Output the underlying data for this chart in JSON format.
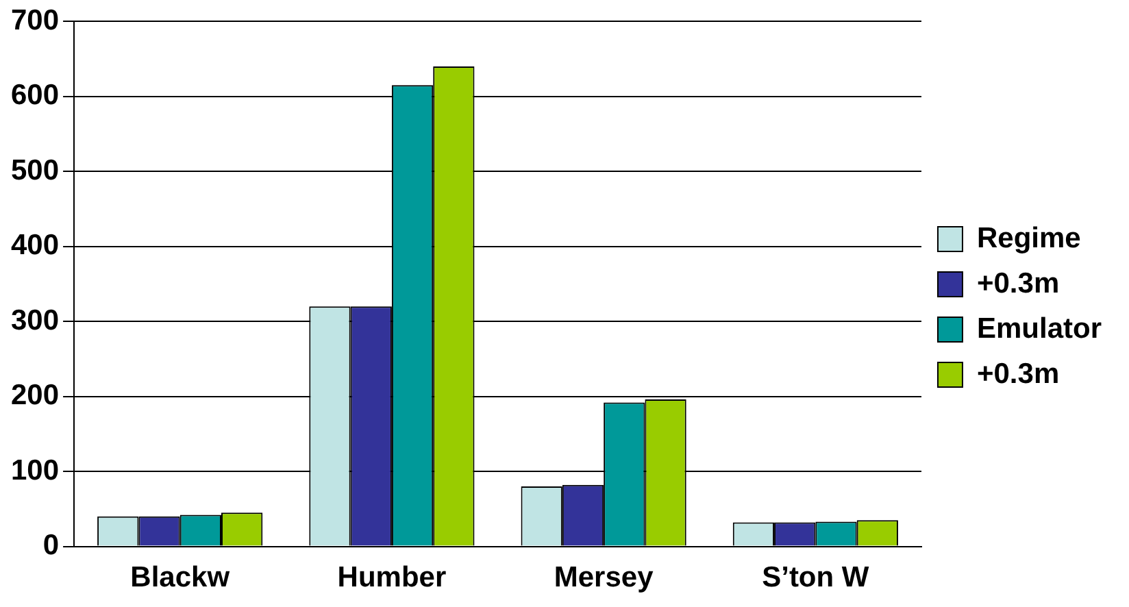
{
  "chart_data": {
    "type": "bar",
    "categories": [
      "Blackw",
      "Humber",
      "Mersey",
      "S’ton W"
    ],
    "series": [
      {
        "name": "Regime",
        "color": "#c0e4e4",
        "values": [
          40,
          320,
          80,
          32
        ]
      },
      {
        "name": "+0.3m",
        "color": "#333399",
        "values": [
          40,
          320,
          82,
          32
        ]
      },
      {
        "name": "Emulator",
        "color": "#009999",
        "values": [
          42,
          615,
          192,
          33
        ]
      },
      {
        "name": "+0.3m",
        "color": "#99cc00",
        "values": [
          45,
          640,
          196,
          35
        ]
      }
    ],
    "ylim": [
      0,
      700
    ],
    "yticks": [
      0,
      100,
      200,
      300,
      400,
      500,
      600,
      700
    ],
    "grid": "y",
    "legend": "right"
  }
}
